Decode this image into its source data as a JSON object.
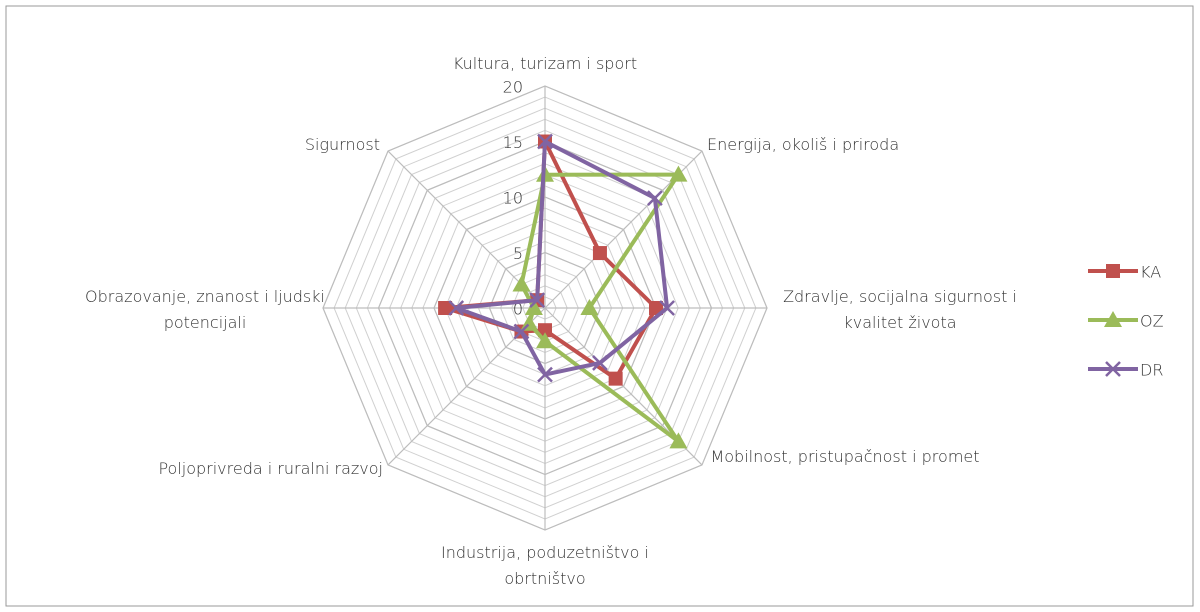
{
  "chart_data": {
    "type": "radar",
    "categories": [
      "Kultura, turizam i sport",
      "Energija, okoliš i priroda",
      "Zdravlje, socijalna sigurnost i kvalitet života",
      "Mobilnost, pristupačnost i promet",
      "Industrija, poduzetništvo i obrtništvo",
      "Poljoprivreda i ruralni razvoj",
      "Obrazovanje, znanost i ljudski potencijali",
      "Sigurnost"
    ],
    "series": [
      {
        "name": "KA",
        "color": "#c0504d",
        "marker": "square",
        "values": [
          15,
          7,
          10,
          9,
          2,
          3,
          9,
          1
        ]
      },
      {
        "name": "OZ",
        "color": "#9bbb59",
        "marker": "triangle",
        "values": [
          12,
          17,
          4,
          17,
          3,
          2,
          1,
          3
        ]
      },
      {
        "name": "DR",
        "color": "#8064a2",
        "marker": "x",
        "values": [
          15,
          14,
          11,
          7,
          6,
          3,
          8,
          1
        ]
      }
    ],
    "ylim": [
      0,
      20
    ],
    "yticks": [
      0,
      5,
      10,
      15,
      20
    ],
    "grid": true,
    "legend": "right"
  }
}
